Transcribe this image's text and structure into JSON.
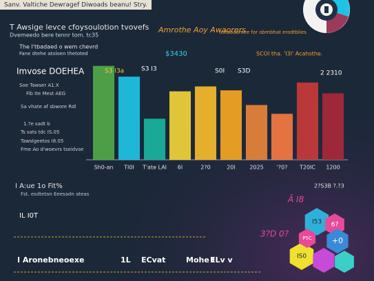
{
  "chart_data": {
    "type": "bar",
    "title": "Sanv. Valtiche Dewragef Diwoads beanu! Stry.",
    "subtitle": "T Awsige levce cfoysoulotion tvovefs",
    "categories": [
      "Sh0-an",
      "TI0I",
      "T'ate LAI",
      "6I",
      "2?0",
      "20I",
      "2025",
      "'?0?",
      "T20IC",
      "1200"
    ],
    "values": [
      96,
      85,
      42,
      70,
      75,
      71,
      56,
      47,
      79,
      68
    ],
    "colors": [
      "#52a84a",
      "#1ec3e6",
      "#1ab3a0",
      "#f2d23a",
      "#f5bb2a",
      "#f5a623",
      "#e8843a",
      "#f47a42",
      "#c83a3a",
      "#a8283a"
    ],
    "ylim": [
      0,
      100
    ],
    "annotations": [
      "Dvemeedo bere tennr tom. tc35",
      "Amrothe Aoy Awaorers",
      "teltaoaomee for obmbhat erodtblies",
      "$3430",
      "SCOI tha. 'I3I' Acahsthe.",
      "The I'tbadaed o wem chevrd",
      "Fane dtehe atoloen thetoted",
      "Imvose DOEHEA",
      "Soe Tawser   A1.X",
      "Fib Ite Mest   AEG",
      "Sa vhate af sbwore  Rdl",
      "1.?e   sadt  b",
      "Ts sats tdc   IS.05",
      "Tawslgeetos   I8.05",
      "Fme Ao d'woevrs   tseidvse",
      "S3 I3a",
      "S3 I3",
      "S0I",
      "S3D",
      "2 2310",
      "2?0",
      "I A:ue 1o Fit%",
      "Fst. esdtetan Eeesadn ateas",
      "2?S3B ?.?3",
      "IL   I0T",
      "3?D 0?",
      "Ã I8",
      "I Aronebneoexe",
      "1L",
      "ECvat",
      "Mohe I",
      "ELv v",
      "I53",
      "6?",
      "+0",
      "IS0",
      "P5C"
    ]
  }
}
